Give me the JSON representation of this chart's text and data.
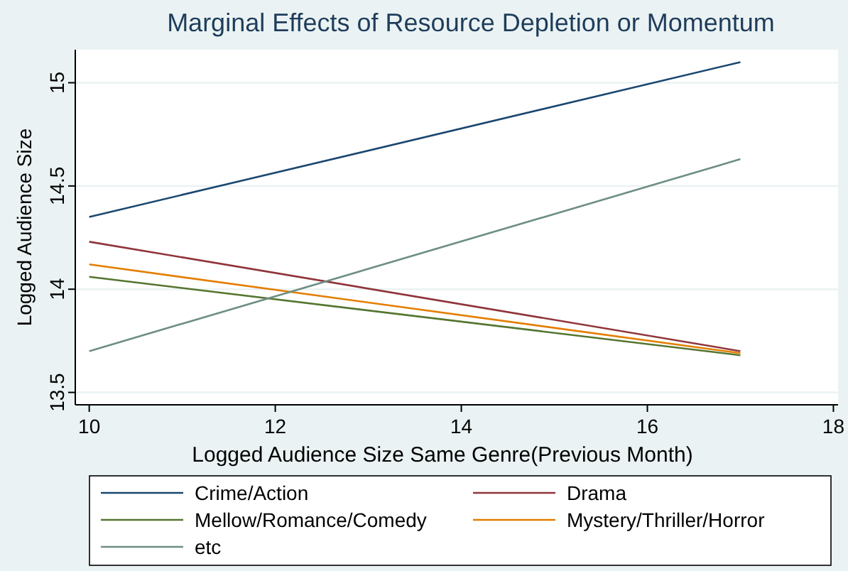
{
  "chart_data": {
    "type": "line",
    "title": "Marginal Effects of Resource Depletion or Momentum",
    "xlabel": "Logged Audience Size Same Genre(Previous Month)",
    "ylabel": "Logged Audience Size",
    "x": [
      10,
      17
    ],
    "xlim": [
      9.85,
      18.05
    ],
    "xticks": [
      10,
      12,
      14,
      16,
      18
    ],
    "ylim": [
      13.44,
      15.16
    ],
    "yticks": [
      13.5,
      14,
      14.5,
      15
    ],
    "grid": "y",
    "legend": "bottom",
    "marker": "none",
    "line_style": "solid",
    "series": [
      {
        "name": "Crime/Action",
        "color": "#1a476f",
        "values": [
          14.35,
          15.1
        ]
      },
      {
        "name": "Drama",
        "color": "#90353b",
        "values": [
          14.23,
          13.7
        ]
      },
      {
        "name": "Mellow/Romance/Comedy",
        "color": "#55752f",
        "values": [
          14.06,
          13.68
        ]
      },
      {
        "name": "Mystery/Thriller/Horror",
        "color": "#e37e00",
        "values": [
          14.12,
          13.69
        ]
      },
      {
        "name": "etc",
        "color": "#6e8e84",
        "values": [
          13.7,
          14.63
        ]
      }
    ]
  }
}
